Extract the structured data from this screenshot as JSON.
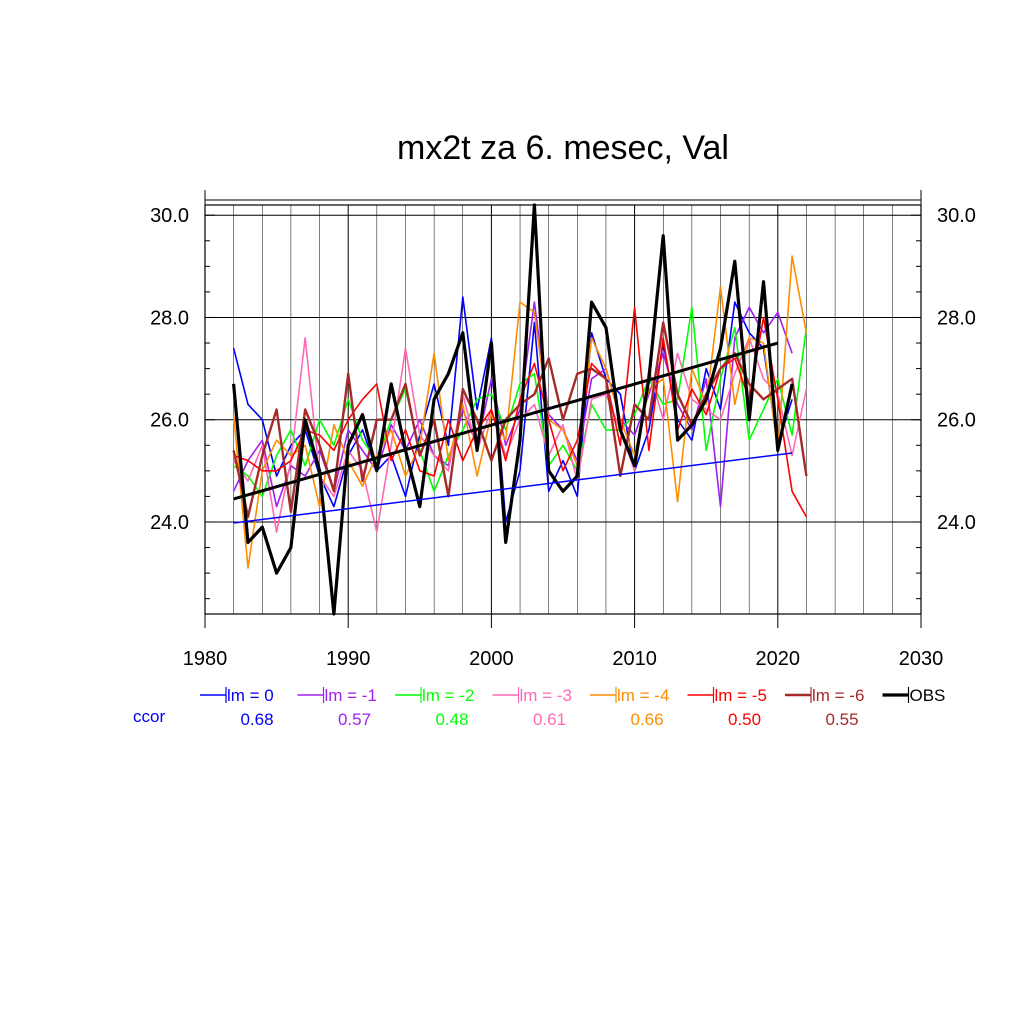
{
  "chart_data": {
    "type": "line",
    "title": "mx2t za 6. mesec, Val",
    "xlabel": "",
    "ylabel": "",
    "xlim": [
      1980,
      2030
    ],
    "ylim": [
      22.2,
      30.2
    ],
    "x_ticks": [
      "1980",
      "1990",
      "2000",
      "2010",
      "2020",
      "2030"
    ],
    "y_ticks": [
      "24.0",
      "26.0",
      "28.0",
      "30.0"
    ],
    "grid": true,
    "legend_position": "bottom",
    "ccor_label": "ccor",
    "series": [
      {
        "name": "lm = 0",
        "color": "#0000ff",
        "ccor": "0.68",
        "width": 1.6,
        "x": [
          1982,
          1983,
          1984,
          1985,
          1986,
          1987,
          1988,
          1989,
          1990,
          1991,
          1992,
          1993,
          1994,
          1995,
          1996,
          1997,
          1998,
          1999,
          2000,
          2001,
          2002,
          2003,
          2004,
          2005,
          2006,
          2007,
          2008,
          2009,
          2010,
          2011,
          2012,
          2013,
          2014,
          2015,
          2016,
          2017,
          2018,
          2019,
          2020,
          2021
        ],
        "values": [
          27.4,
          26.3,
          26.0,
          24.9,
          25.5,
          25.8,
          24.9,
          24.3,
          25.3,
          25.8,
          25.0,
          25.3,
          24.5,
          25.7,
          26.7,
          25.5,
          28.4,
          26.2,
          27.6,
          24.0,
          25.0,
          27.9,
          24.6,
          25.2,
          24.5,
          27.7,
          26.8,
          26.5,
          25.0,
          25.8,
          27.5,
          26.0,
          25.6,
          27.0,
          26.2,
          28.3,
          27.7,
          27.4,
          25.5,
          26.4
        ]
      },
      {
        "name": "lm = -1",
        "color": "#a020f0",
        "ccor": "0.57",
        "width": 1.6,
        "x": [
          1982,
          1983,
          1984,
          1985,
          1986,
          1987,
          1988,
          1989,
          1990,
          1991,
          1992,
          1993,
          1994,
          1995,
          1996,
          1997,
          1998,
          1999,
          2000,
          2001,
          2002,
          2003,
          2004,
          2005,
          2006,
          2007,
          2008,
          2009,
          2010,
          2011,
          2012,
          2013,
          2014,
          2015,
          2016,
          2017,
          2018,
          2019,
          2020,
          2021
        ],
        "values": [
          24.6,
          25.2,
          25.6,
          24.3,
          25.1,
          24.9,
          25.4,
          24.6,
          25.8,
          25.4,
          25.0,
          25.9,
          25.4,
          26.0,
          25.3,
          25.1,
          26.2,
          25.5,
          26.8,
          25.5,
          26.2,
          28.3,
          26.1,
          25.8,
          25.2,
          26.8,
          27.0,
          26.0,
          25.7,
          26.5,
          27.3,
          26.3,
          25.8,
          26.8,
          24.3,
          27.6,
          28.2,
          27.7,
          28.1,
          27.3
        ]
      },
      {
        "name": "lm = -2",
        "color": "#00ff00",
        "ccor": "0.48",
        "width": 1.6,
        "x": [
          1982,
          1983,
          1984,
          1985,
          1986,
          1987,
          1988,
          1989,
          1990,
          1991,
          1992,
          1993,
          1994,
          1995,
          1996,
          1997,
          1998,
          1999,
          2000,
          2001,
          2002,
          2003,
          2004,
          2005,
          2006,
          2007,
          2008,
          2009,
          2010,
          2011,
          2012,
          2013,
          2014,
          2015,
          2016,
          2017,
          2018,
          2019,
          2020,
          2021,
          2022
        ],
        "values": [
          25.1,
          24.9,
          24.5,
          25.3,
          25.8,
          25.1,
          26.0,
          25.5,
          26.4,
          25.6,
          25.2,
          26.0,
          26.6,
          25.4,
          24.6,
          25.3,
          25.8,
          26.4,
          26.5,
          25.8,
          26.7,
          26.9,
          25.1,
          25.5,
          25.0,
          26.3,
          25.8,
          25.8,
          26.1,
          26.8,
          26.3,
          26.4,
          28.2,
          25.4,
          26.8,
          27.8,
          25.6,
          26.2,
          26.8,
          25.7,
          27.8
        ]
      },
      {
        "name": "lm = -3",
        "color": "#ff69b4",
        "ccor": "0.61",
        "width": 1.6,
        "x": [
          1982,
          1983,
          1984,
          1985,
          1986,
          1987,
          1988,
          1989,
          1990,
          1991,
          1992,
          1993,
          1994,
          1995,
          1996,
          1997,
          1998,
          1999,
          2000,
          2001,
          2002,
          2003,
          2004,
          2005,
          2006,
          2007,
          2008,
          2009,
          2010,
          2011,
          2012,
          2013,
          2014,
          2015,
          2016,
          2017,
          2018,
          2019,
          2020,
          2021,
          2022
        ],
        "values": [
          25.2,
          24.8,
          25.5,
          23.8,
          25.2,
          27.6,
          24.9,
          24.5,
          25.4,
          25.0,
          23.8,
          25.5,
          27.4,
          25.7,
          25.3,
          25.0,
          26.5,
          25.4,
          26.2,
          25.3,
          26.0,
          26.3,
          25.3,
          25.9,
          24.8,
          26.4,
          26.5,
          25.8,
          25.0,
          27.0,
          26.0,
          27.3,
          26.4,
          26.2,
          26.0,
          26.9,
          27.6,
          26.8,
          26.5,
          25.3,
          26.6
        ]
      },
      {
        "name": "lm = -4",
        "color": "#ff8c00",
        "ccor": "0.66",
        "width": 1.6,
        "x": [
          1982,
          1983,
          1984,
          1985,
          1986,
          1987,
          1988,
          1989,
          1990,
          1991,
          1992,
          1993,
          1994,
          1995,
          1996,
          1997,
          1998,
          1999,
          2000,
          2001,
          2002,
          2003,
          2004,
          2005,
          2006,
          2007,
          2008,
          2009,
          2010,
          2011,
          2012,
          2013,
          2014,
          2015,
          2016,
          2017,
          2018,
          2019,
          2020,
          2021,
          2022
        ],
        "values": [
          26.1,
          23.1,
          25.0,
          25.6,
          25.3,
          25.5,
          24.3,
          25.9,
          25.2,
          24.7,
          25.3,
          25.8,
          24.9,
          25.5,
          27.3,
          25.2,
          26.3,
          24.9,
          26.1,
          25.6,
          28.3,
          28.1,
          26.0,
          25.8,
          25.1,
          27.6,
          27.0,
          26.0,
          25.3,
          26.6,
          26.8,
          24.4,
          27.0,
          26.3,
          28.6,
          26.3,
          27.6,
          27.5,
          25.4,
          29.2,
          27.7
        ]
      },
      {
        "name": "lm = -5",
        "color": "#ff0000",
        "ccor": "0.50",
        "width": 1.6,
        "x": [
          1982,
          1983,
          1984,
          1985,
          1986,
          1987,
          1988,
          1989,
          1990,
          1991,
          1992,
          1993,
          1994,
          1995,
          1996,
          1997,
          1998,
          1999,
          2000,
          2001,
          2002,
          2003,
          2004,
          2005,
          2006,
          2007,
          2008,
          2009,
          2010,
          2011,
          2012,
          2013,
          2014,
          2015,
          2016,
          2017,
          2018,
          2019,
          2020,
          2021,
          2022
        ],
        "values": [
          25.3,
          25.2,
          25.0,
          25.0,
          25.2,
          25.8,
          25.7,
          25.4,
          26.0,
          26.4,
          26.7,
          25.2,
          25.8,
          25.0,
          24.9,
          26.0,
          25.2,
          25.8,
          26.2,
          25.2,
          26.4,
          27.1,
          26.0,
          25.0,
          25.6,
          27.1,
          26.8,
          25.5,
          28.2,
          25.4,
          27.6,
          25.8,
          26.6,
          26.1,
          27.0,
          27.2,
          26.4,
          28.0,
          26.4,
          24.6,
          24.1
        ]
      },
      {
        "name": "lm = -6",
        "color": "#a52a2a",
        "ccor": "0.55",
        "width": 2.4,
        "x": [
          1982,
          1983,
          1984,
          1985,
          1986,
          1987,
          1988,
          1989,
          1990,
          1991,
          1992,
          1993,
          1994,
          1995,
          1996,
          1997,
          1998,
          1999,
          2000,
          2001,
          2002,
          2003,
          2004,
          2005,
          2006,
          2007,
          2008,
          2009,
          2010,
          2011,
          2012,
          2013,
          2014,
          2015,
          2016,
          2017,
          2018,
          2019,
          2020,
          2021,
          2022
        ],
        "values": [
          25.4,
          24.1,
          25.3,
          26.2,
          24.2,
          26.2,
          25.5,
          24.6,
          26.9,
          24.8,
          26.0,
          26.0,
          26.7,
          25.3,
          26.0,
          24.5,
          26.6,
          26.0,
          25.2,
          26.0,
          26.3,
          26.5,
          27.2,
          26.0,
          26.9,
          27.0,
          26.8,
          24.9,
          26.3,
          26.0,
          27.9,
          26.5,
          25.9,
          26.5,
          27.0,
          27.3,
          26.7,
          26.4,
          26.6,
          26.8,
          24.9
        ]
      },
      {
        "name": "OBS",
        "color": "#000000",
        "ccor": "",
        "width": 3.2,
        "x": [
          1982,
          1983,
          1984,
          1985,
          1986,
          1987,
          1988,
          1989,
          1990,
          1991,
          1992,
          1993,
          1994,
          1995,
          1996,
          1997,
          1998,
          1999,
          2000,
          2001,
          2002,
          2003,
          2004,
          2005,
          2006,
          2007,
          2008,
          2009,
          2010,
          2011,
          2012,
          2013,
          2014,
          2015,
          2016,
          2017,
          2018,
          2019,
          2020,
          2021
        ],
        "values": [
          26.7,
          23.6,
          23.9,
          23.0,
          23.5,
          26.0,
          25.0,
          22.2,
          25.5,
          26.1,
          25.0,
          26.7,
          25.4,
          24.3,
          26.4,
          26.9,
          27.7,
          25.4,
          27.5,
          23.6,
          25.6,
          30.2,
          25.0,
          24.6,
          24.9,
          28.3,
          27.8,
          25.8,
          25.1,
          26.8,
          29.6,
          25.6,
          25.9,
          26.4,
          27.4,
          29.1,
          26.0,
          28.7,
          25.4,
          26.7
        ]
      }
    ],
    "trend_lines": [
      {
        "name": "OBS trend",
        "color": "#000000",
        "x": [
          1982,
          2020
        ],
        "values": [
          24.45,
          27.5
        ]
      },
      {
        "name": "lm = 0 trend",
        "color": "#0000ff",
        "x": [
          1982,
          2021
        ],
        "values": [
          23.98,
          25.35
        ]
      }
    ]
  }
}
